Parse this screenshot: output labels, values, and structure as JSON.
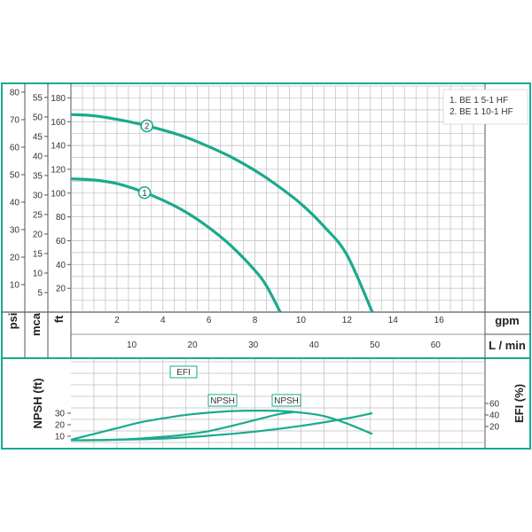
{
  "chart_data": [
    {
      "type": "line",
      "axes": {
        "psi": {
          "label": "psi",
          "ticks": [
            10,
            20,
            30,
            40,
            50,
            60,
            70,
            80
          ]
        },
        "mca": {
          "label": "mca",
          "ticks": [
            5,
            10,
            15,
            20,
            25,
            30,
            35,
            40,
            45,
            50,
            55
          ]
        },
        "ft": {
          "label": "ft",
          "ticks": [
            20,
            40,
            60,
            80,
            100,
            120,
            140,
            160,
            180
          ],
          "range": [
            0,
            190
          ]
        },
        "gpm": {
          "label": "gpm",
          "ticks": [
            2,
            4,
            6,
            8,
            10,
            12,
            14,
            16
          ],
          "range": [
            0,
            18
          ]
        },
        "lmin": {
          "label": "L / min",
          "ticks": [
            10,
            20,
            30,
            40,
            50,
            60
          ]
        }
      },
      "legend": [
        "1. BE 1 5-1 HF",
        "2. BE 1 10-1 HF"
      ],
      "series": [
        {
          "marker": "1",
          "marker_x": 3.2,
          "color": "#1aaa8e",
          "x": [
            0,
            1,
            2,
            3,
            4,
            5,
            6,
            7,
            8,
            8.5,
            9.1
          ],
          "y": [
            112,
            111,
            108,
            102,
            94,
            84,
            71,
            55,
            35,
            22,
            0
          ]
        },
        {
          "marker": "2",
          "marker_x": 3.3,
          "color": "#1aaa8e",
          "x": [
            0,
            1,
            2,
            3,
            4,
            5,
            6,
            7,
            8,
            9,
            10,
            11,
            12,
            13.1
          ],
          "y": [
            166,
            165,
            162,
            158,
            153,
            147,
            139,
            130,
            119,
            106,
            91,
            72,
            48,
            0
          ]
        }
      ],
      "grid": true
    },
    {
      "type": "line",
      "axes": {
        "npsh": {
          "label": "NPSH (ft)",
          "ticks": [
            10,
            20,
            30
          ]
        },
        "efi": {
          "label": "EFI (%)",
          "ticks": [
            20,
            40,
            60
          ]
        }
      },
      "series": [
        {
          "label": "EFI",
          "color": "#1aaa8e",
          "x": [
            0,
            1,
            2,
            3,
            4,
            5,
            6,
            7,
            8,
            9,
            10,
            11,
            12,
            13.1
          ],
          "y": [
            7,
            12,
            17,
            22,
            25.5,
            28.5,
            30.5,
            31.8,
            32.2,
            32,
            30.5,
            27.5,
            21,
            12
          ]
        },
        {
          "label": "NPSH",
          "color": "#1aaa8e",
          "x": [
            0,
            1,
            2,
            3,
            4,
            5,
            6,
            7,
            8,
            9,
            9.7
          ],
          "y": [
            6.5,
            6.5,
            7,
            8,
            9.5,
            11.5,
            14.5,
            19,
            24,
            29,
            31
          ]
        },
        {
          "label": "NPSH",
          "color": "#1aaa8e",
          "x": [
            0,
            2,
            4,
            6,
            8,
            10,
            12,
            13.1
          ],
          "y": [
            6.5,
            7,
            8,
            10.5,
            14,
            19,
            25.5,
            30
          ]
        }
      ]
    }
  ]
}
